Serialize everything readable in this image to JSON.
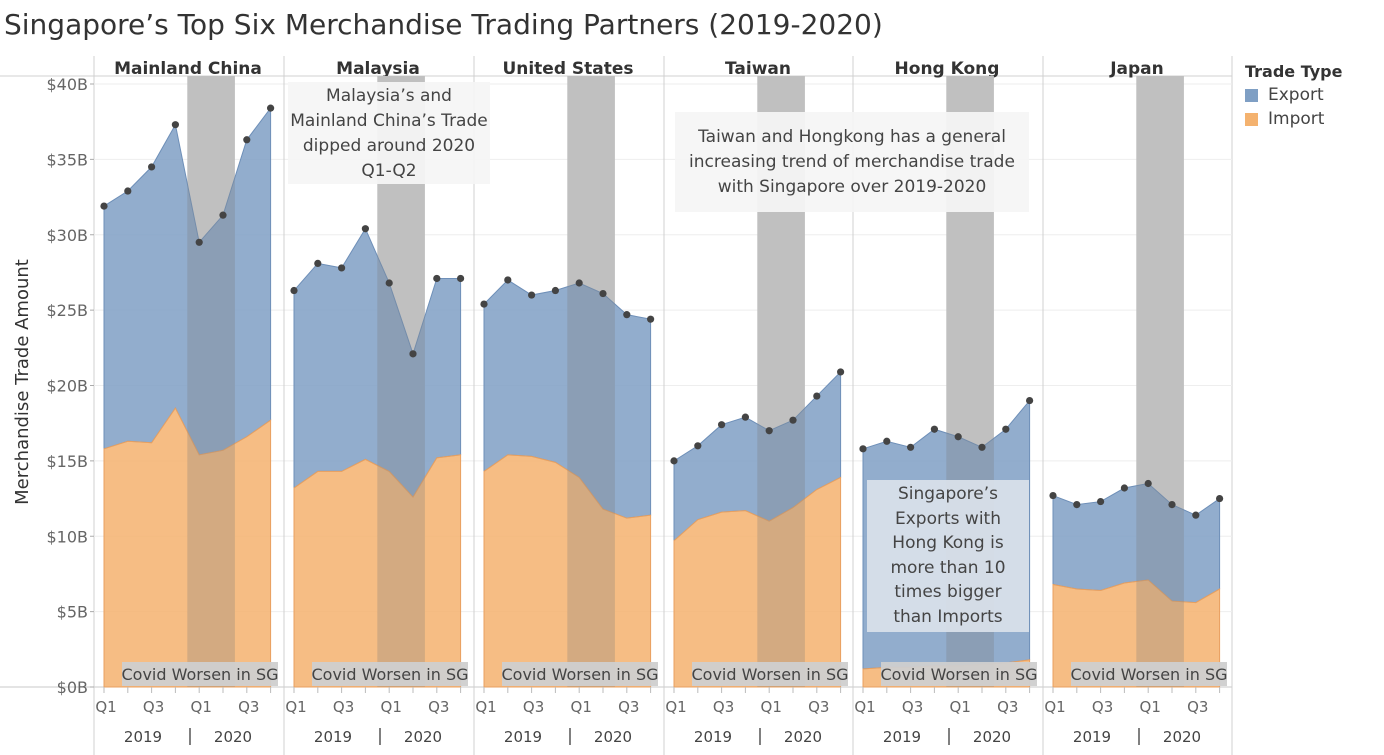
{
  "title": "Singapore’s Top Six Merchandise Trading Partners (2019-2020)",
  "legend": {
    "title": "Trade Type",
    "items": [
      {
        "label": "Export",
        "color": "#7f9fc4"
      },
      {
        "label": "Import",
        "color": "#f4b26f"
      }
    ]
  },
  "annotations": {
    "malaysia_note": "Malaysia’s and Mainland China’s Trade dipped around 2020 Q1-Q2",
    "taiwan_note": "Taiwan and Hongkong has a general increasing trend of merchandise trade with Singapore over 2019-2020",
    "hongkong_note": "Singapore’s Exports with Hong Kong is more than 10 times bigger than Imports",
    "covid_label": "Covid Worsen in SG"
  },
  "chart_data": {
    "type": "area",
    "stacked": true,
    "ylabel": "Merchandise Trade Amount",
    "ylim": [
      0,
      40
    ],
    "yticks": [
      "$0B",
      "$5B",
      "$10B",
      "$15B",
      "$20B",
      "$25B",
      "$30B",
      "$35B",
      "$40B"
    ],
    "x_tick_labels": [
      "Q1",
      "Q3",
      "Q1",
      "Q3"
    ],
    "years": [
      "2019",
      "2020"
    ],
    "x": [
      "2019 Q1",
      "2019 Q2",
      "2019 Q3",
      "2019 Q4",
      "2020 Q1",
      "2020 Q2",
      "2020 Q3",
      "2020 Q4"
    ],
    "highlight_period": [
      "2020 Q1",
      "2020 Q2"
    ],
    "panels": [
      {
        "name": "Mainland China",
        "import": [
          15.8,
          16.3,
          16.2,
          18.5,
          15.4,
          15.7,
          16.6,
          17.7
        ],
        "total": [
          31.9,
          32.9,
          34.5,
          37.3,
          29.5,
          31.3,
          36.3,
          38.4
        ]
      },
      {
        "name": "Malaysia",
        "import": [
          13.2,
          14.3,
          14.3,
          15.1,
          14.3,
          12.6,
          15.2,
          15.4
        ],
        "total": [
          26.3,
          28.1,
          27.8,
          30.4,
          26.8,
          22.1,
          27.1,
          27.1
        ]
      },
      {
        "name": "United States",
        "import": [
          14.3,
          15.4,
          15.3,
          14.9,
          13.9,
          11.8,
          11.2,
          11.4
        ],
        "total": [
          25.4,
          27.0,
          26.0,
          26.3,
          26.8,
          26.1,
          24.7,
          24.4
        ]
      },
      {
        "name": "Taiwan",
        "import": [
          9.7,
          11.1,
          11.6,
          11.7,
          11.0,
          11.9,
          13.1,
          13.9
        ],
        "total": [
          15.0,
          16.0,
          17.4,
          17.9,
          17.0,
          17.7,
          19.3,
          20.9
        ]
      },
      {
        "name": "Hong Kong",
        "import": [
          1.2,
          1.3,
          1.3,
          1.4,
          1.4,
          1.5,
          1.6,
          1.8
        ],
        "total": [
          15.8,
          16.3,
          15.9,
          17.1,
          16.6,
          15.9,
          17.1,
          19.0
        ]
      },
      {
        "name": "Japan",
        "import": [
          6.8,
          6.5,
          6.4,
          6.9,
          7.1,
          5.7,
          5.6,
          6.5
        ],
        "total": [
          12.7,
          12.1,
          12.3,
          13.2,
          13.5,
          12.1,
          11.4,
          12.5
        ]
      }
    ]
  }
}
